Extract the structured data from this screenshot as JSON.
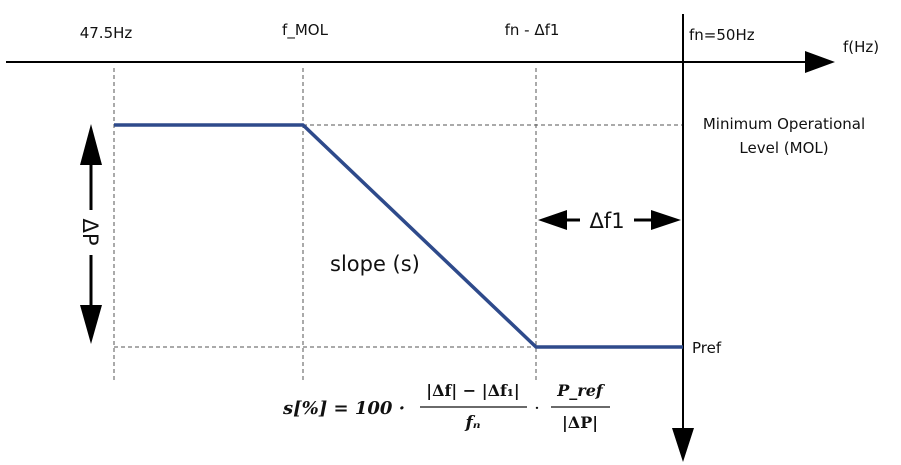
{
  "axis": {
    "x_label": "f(Hz)"
  },
  "ticks": {
    "f_min": "47.5Hz",
    "f_mol": "f_MOL",
    "f_knee": "fn - Δf1",
    "f_nominal": "fn=50Hz"
  },
  "levels": {
    "mol_line1": "Minimum Operational",
    "mol_line2": "Level (MOL)",
    "pref": "Pref"
  },
  "annotations": {
    "delta_p": "ΔP",
    "delta_f1": "Δf1",
    "slope": "slope (s)"
  },
  "formula": {
    "lhs": "s[%] = 100 ·",
    "num": "|Δf| − |Δf₁|",
    "den": "fₙ",
    "dot": "·",
    "num2": "P_ref",
    "den2": "|ΔP|"
  },
  "colors": {
    "curve": "#2e4a8b",
    "axis": "#000000",
    "guide": "#555555"
  }
}
